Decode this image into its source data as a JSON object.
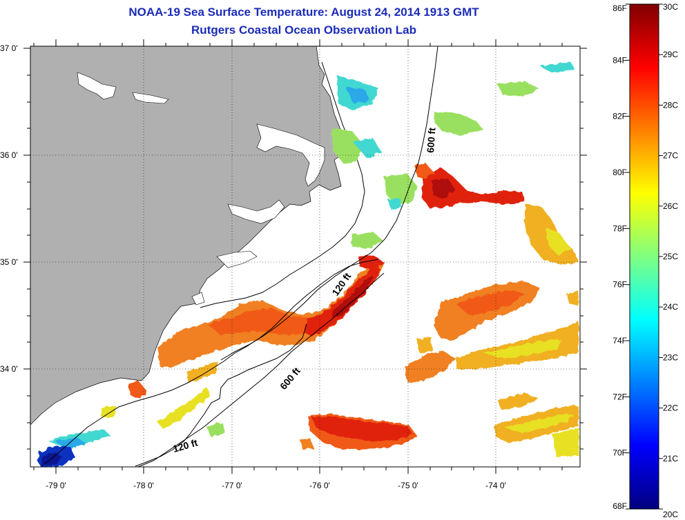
{
  "header": {
    "title": "NOAA-19 Sea Surface Temperature:  August 24, 2014 1913 GMT",
    "subtitle": "Rutgers Coastal Ocean Observation Lab"
  },
  "map": {
    "lon_range": [
      -79.3,
      -73.0
    ],
    "lat_range": [
      33.1,
      37.0
    ],
    "lon_ticks": [
      "-79 0'",
      "-78 0'",
      "-77 0'",
      "-76 0'",
      "-75 0'",
      "-74 0'"
    ],
    "lat_ticks": [
      "37 0'",
      "36 0'",
      "35 0'",
      "34 0'"
    ],
    "land_color": "#b0b0b0",
    "grid": "dotted"
  },
  "isobaths": [
    {
      "label": "600 ft"
    },
    {
      "label": "120 ft"
    },
    {
      "label": "600 ft"
    },
    {
      "label": "120 ft"
    }
  ],
  "colorbar": {
    "fahrenheit": [
      "86F",
      "84F",
      "82F",
      "80F",
      "78F",
      "76F",
      "74F",
      "72F",
      "70F",
      "68F"
    ],
    "celsius": [
      "30C",
      "29C",
      "28C",
      "27C",
      "26C",
      "25C",
      "24C",
      "23C",
      "22C",
      "21C",
      "20C"
    ],
    "colors": [
      "#00007f",
      "#0000ff",
      "#0080ff",
      "#00ffff",
      "#80ff80",
      "#ffff00",
      "#ff8000",
      "#ff0000",
      "#800000"
    ]
  },
  "sst_colors": {
    "cold": "#1030c0",
    "cool": "#2aa8e8",
    "cyan": "#40d8d0",
    "green": "#9ae060",
    "yellow": "#e8e020",
    "light_orange": "#f0b020",
    "orange": "#f08020",
    "red_orange": "#f05a18",
    "red": "#e02010",
    "dark_red": "#b01010"
  }
}
